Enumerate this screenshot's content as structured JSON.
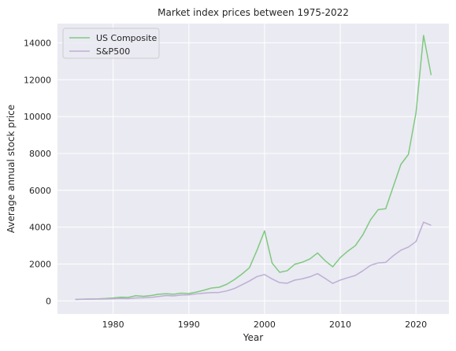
{
  "chart_data": {
    "type": "line",
    "title": "Market index prices between 1975-2022",
    "xlabel": "Year",
    "ylabel": "Average annual stock price",
    "xlim": [
      1972.65,
      2024.35
    ],
    "ylim": [
      -711,
      15042
    ],
    "x_ticks": [
      1980,
      1990,
      2000,
      2010,
      2020
    ],
    "y_ticks": [
      0,
      2000,
      4000,
      6000,
      8000,
      10000,
      12000,
      14000
    ],
    "grid": true,
    "legend_position": "upper-left",
    "x": [
      1975,
      1976,
      1977,
      1978,
      1979,
      1980,
      1981,
      1982,
      1983,
      1984,
      1985,
      1986,
      1987,
      1988,
      1989,
      1990,
      1991,
      1992,
      1993,
      1994,
      1995,
      1996,
      1997,
      1998,
      1999,
      2000,
      2001,
      2002,
      2003,
      2004,
      2005,
      2006,
      2007,
      2008,
      2009,
      2010,
      2011,
      2012,
      2013,
      2014,
      2015,
      2016,
      2017,
      2018,
      2019,
      2020,
      2021,
      2022
    ],
    "series": [
      {
        "name": "US Composite",
        "color": "#7fc97f",
        "values": [
          80,
          95,
          105,
          110,
          130,
          160,
          200,
          190,
          280,
          250,
          290,
          360,
          390,
          360,
          420,
          400,
          480,
          580,
          700,
          740,
          900,
          1150,
          1450,
          1800,
          2750,
          3800,
          2050,
          1550,
          1640,
          1990,
          2100,
          2280,
          2600,
          2180,
          1850,
          2350,
          2700,
          3000,
          3600,
          4400,
          4950,
          5000,
          6200,
          7400,
          7950,
          10200,
          14400,
          12250
        ]
      },
      {
        "name": "S&P500",
        "color": "#beaed4",
        "values": [
          80,
          90,
          95,
          100,
          105,
          115,
          130,
          120,
          160,
          170,
          190,
          240,
          290,
          270,
          320,
          330,
          380,
          420,
          450,
          460,
          540,
          670,
          870,
          1080,
          1320,
          1430,
          1190,
          990,
          960,
          1130,
          1200,
          1310,
          1480,
          1220,
          950,
          1130,
          1260,
          1380,
          1640,
          1930,
          2060,
          2090,
          2450,
          2750,
          2920,
          3220,
          4270,
          4100
        ]
      }
    ]
  }
}
